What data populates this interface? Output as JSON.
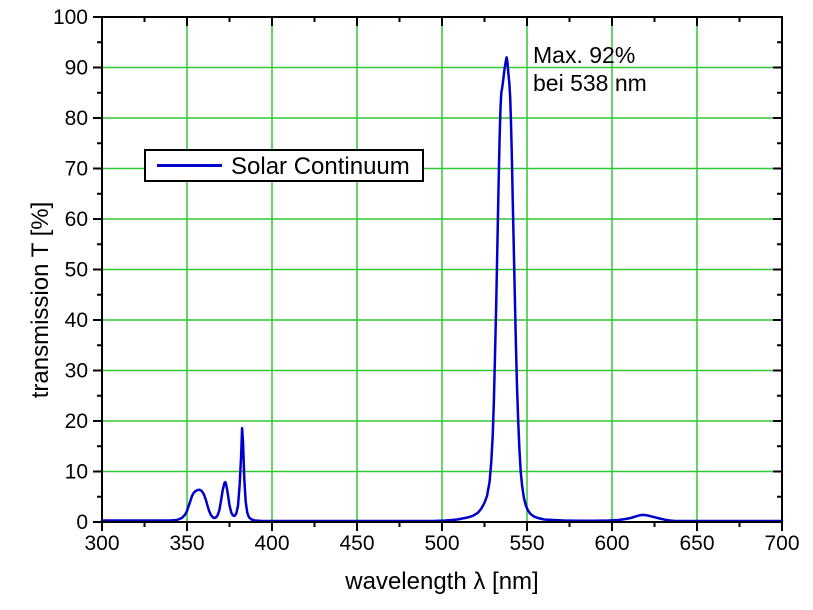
{
  "chart_data": {
    "type": "line",
    "title": "",
    "xlabel": "wavelength λ [nm]",
    "ylabel": "transmission T [%]",
    "xlim": [
      300,
      700
    ],
    "ylim": [
      0,
      100
    ],
    "x_major_ticks": [
      300,
      350,
      400,
      450,
      500,
      550,
      600,
      650,
      700
    ],
    "x_minor_ticks": [
      325,
      375,
      425,
      475,
      525,
      575,
      625,
      675
    ],
    "y_major_ticks": [
      0,
      10,
      20,
      30,
      40,
      50,
      60,
      70,
      80,
      90,
      100
    ],
    "y_minor_ticks": [
      5,
      15,
      25,
      35,
      45,
      55,
      65,
      75,
      85,
      95
    ],
    "grid": true,
    "legend_position": "upper-left",
    "colors": {
      "grid": "#32C832",
      "line": "#0000CC",
      "axis": "#000000",
      "background": "#FFFFFF"
    },
    "legend": {
      "label": "Solar Continuum"
    },
    "annotation": {
      "line1": "Max. 92%",
      "line2": "bei 538 nm"
    },
    "series": [
      {
        "name": "Solar Continuum",
        "points": [
          [
            300,
            0.3
          ],
          [
            310,
            0.3
          ],
          [
            320,
            0.3
          ],
          [
            330,
            0.3
          ],
          [
            340,
            0.3
          ],
          [
            344,
            0.4
          ],
          [
            347,
            0.8
          ],
          [
            349,
            1.5
          ],
          [
            350,
            2.2
          ],
          [
            351,
            3.2
          ],
          [
            352,
            4.2
          ],
          [
            353,
            5.2
          ],
          [
            354,
            5.8
          ],
          [
            355,
            6.1
          ],
          [
            356,
            6.3
          ],
          [
            357,
            6.4
          ],
          [
            358,
            6.3
          ],
          [
            359,
            6.0
          ],
          [
            360,
            5.4
          ],
          [
            361,
            4.5
          ],
          [
            362,
            3.3
          ],
          [
            363,
            2.2
          ],
          [
            364,
            1.4
          ],
          [
            365,
            1.0
          ],
          [
            366,
            0.8
          ],
          [
            367,
            0.9
          ],
          [
            368,
            1.3
          ],
          [
            369,
            2.3
          ],
          [
            370,
            4.2
          ],
          [
            371,
            6.3
          ],
          [
            372,
            7.7
          ],
          [
            372.5,
            7.9
          ],
          [
            373,
            7.5
          ],
          [
            374,
            5.6
          ],
          [
            375,
            3.3
          ],
          [
            376,
            1.9
          ],
          [
            377,
            1.3
          ],
          [
            378,
            1.2
          ],
          [
            379,
            1.7
          ],
          [
            380,
            3.2
          ],
          [
            381,
            7.5
          ],
          [
            381.8,
            13
          ],
          [
            382.4,
            18.6
          ],
          [
            383,
            15.5
          ],
          [
            383.7,
            8.5
          ],
          [
            384.5,
            4.0
          ],
          [
            385.5,
            1.8
          ],
          [
            386.5,
            0.9
          ],
          [
            388,
            0.5
          ],
          [
            390,
            0.3
          ],
          [
            394,
            0.2
          ],
          [
            400,
            0.2
          ],
          [
            420,
            0.2
          ],
          [
            440,
            0.2
          ],
          [
            460,
            0.2
          ],
          [
            480,
            0.2
          ],
          [
            495,
            0.2
          ],
          [
            502,
            0.3
          ],
          [
            506,
            0.4
          ],
          [
            509,
            0.5
          ],
          [
            512,
            0.7
          ],
          [
            515,
            0.9
          ],
          [
            518,
            1.2
          ],
          [
            521,
            1.8
          ],
          [
            523,
            2.6
          ],
          [
            525,
            3.8
          ],
          [
            526.5,
            5.2
          ],
          [
            528,
            8
          ],
          [
            529,
            12
          ],
          [
            529.8,
            17
          ],
          [
            530.5,
            24
          ],
          [
            531.2,
            33
          ],
          [
            531.9,
            43
          ],
          [
            532.6,
            55
          ],
          [
            533.3,
            67
          ],
          [
            533.9,
            76
          ],
          [
            534.4,
            82
          ],
          [
            534.9,
            85
          ],
          [
            535.4,
            86
          ],
          [
            536,
            87.5
          ],
          [
            536.7,
            89.5
          ],
          [
            537.4,
            91
          ],
          [
            538,
            92
          ],
          [
            538.5,
            91.2
          ],
          [
            539,
            89
          ],
          [
            539.6,
            87
          ],
          [
            540.1,
            84
          ],
          [
            540.6,
            79
          ],
          [
            541.1,
            72
          ],
          [
            541.6,
            64
          ],
          [
            542.2,
            55
          ],
          [
            542.8,
            45
          ],
          [
            543.4,
            36
          ],
          [
            544.1,
            27
          ],
          [
            544.8,
            20
          ],
          [
            545.5,
            14.5
          ],
          [
            546.3,
            10
          ],
          [
            547.2,
            7
          ],
          [
            548.2,
            4.8
          ],
          [
            549.3,
            3.3
          ],
          [
            550.5,
            2.3
          ],
          [
            552,
            1.6
          ],
          [
            554,
            1.1
          ],
          [
            556.5,
            0.8
          ],
          [
            560,
            0.5
          ],
          [
            565,
            0.4
          ],
          [
            572,
            0.3
          ],
          [
            580,
            0.25
          ],
          [
            590,
            0.25
          ],
          [
            598,
            0.3
          ],
          [
            604,
            0.4
          ],
          [
            608,
            0.6
          ],
          [
            611,
            0.8
          ],
          [
            614,
            1.1
          ],
          [
            616,
            1.3
          ],
          [
            618,
            1.4
          ],
          [
            620,
            1.35
          ],
          [
            622,
            1.2
          ],
          [
            625,
            0.95
          ],
          [
            628,
            0.7
          ],
          [
            631,
            0.45
          ],
          [
            634,
            0.3
          ],
          [
            637,
            0.2
          ],
          [
            641,
            0.2
          ],
          [
            650,
            0.2
          ],
          [
            660,
            0.2
          ],
          [
            680,
            0.2
          ],
          [
            700,
            0.2
          ]
        ]
      }
    ],
    "max_point": {
      "wavelength_nm": 538,
      "transmission_pct": 92
    }
  }
}
